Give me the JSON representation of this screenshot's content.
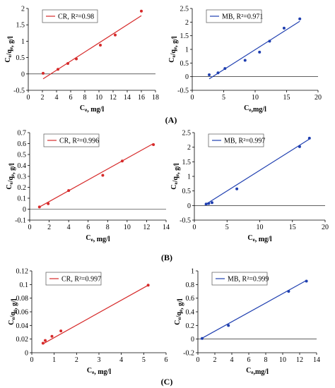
{
  "panel_labels": [
    "(A)",
    "(B)",
    "(C)"
  ],
  "chart_data": [
    {
      "type": "scatter",
      "panel": "A",
      "series": [
        {
          "name": "CR, R²=0.98",
          "color": "#d62a2a",
          "x": [
            2.1,
            4.2,
            5.6,
            6.8,
            10.2,
            12.3,
            16.0
          ],
          "y": [
            0.02,
            0.14,
            0.32,
            0.46,
            0.88,
            1.19,
            1.92
          ],
          "fit": [
            [
              2.1,
              -0.15
            ],
            [
              16.0,
              1.78
            ]
          ]
        }
      ],
      "xlabel": "Ce, mg/l",
      "ylabel": "Ce/qe, g/l",
      "xlim": [
        0,
        18
      ],
      "ylim": [
        -0.5,
        2
      ],
      "xticks": [
        0,
        2,
        4,
        6,
        8,
        10,
        12,
        14,
        16,
        18
      ],
      "yticks": [
        -0.5,
        0,
        0.5,
        1,
        1.5,
        2
      ],
      "ytick_labels": [
        "-0.5",
        "0",
        "0.5",
        "1",
        "1.5",
        "2"
      ],
      "legend_placement": "top-left",
      "grid": false
    },
    {
      "type": "scatter",
      "panel": "A",
      "series": [
        {
          "name": "MB, R²=0.971",
          "color": "#1f3fb0",
          "x": [
            2.7,
            4.1,
            5.2,
            8.4,
            10.7,
            12.3,
            14.6,
            17.1
          ],
          "y": [
            0.07,
            0.14,
            0.3,
            0.6,
            0.9,
            1.3,
            1.78,
            2.12
          ],
          "fit": [
            [
              2.7,
              -0.08
            ],
            [
              17.1,
              2.03
            ]
          ]
        }
      ],
      "xlabel": "Ce,mg/l",
      "ylabel": "Ce/qe, g/l",
      "xlim": [
        0,
        20
      ],
      "ylim": [
        -0.5,
        2.5
      ],
      "xticks": [
        0,
        5,
        10,
        15,
        20
      ],
      "yticks": [
        -0.5,
        0,
        0.5,
        1,
        1.5,
        2,
        2.5
      ],
      "ytick_labels": [
        "-0.5",
        "0",
        "0.5",
        "1",
        "1.5",
        "2",
        "2.5"
      ],
      "legend_placement": "top-left",
      "grid": false
    },
    {
      "type": "scatter",
      "panel": "B",
      "series": [
        {
          "name": "CR, R²=0.996",
          "color": "#d62a2a",
          "x": [
            1.0,
            1.9,
            4.0,
            7.5,
            9.5,
            12.7
          ],
          "y": [
            0.02,
            0.05,
            0.17,
            0.31,
            0.44,
            0.59
          ],
          "fit": [
            [
              0.9,
              0.015
            ],
            [
              12.7,
              0.6
            ]
          ]
        }
      ],
      "xlabel": "Ce, mg/l",
      "ylabel": "Ce/qe, g/l",
      "xlim": [
        0,
        14
      ],
      "ylim": [
        -0.1,
        0.7
      ],
      "xticks": [
        0,
        2,
        4,
        6,
        8,
        10,
        12,
        14
      ],
      "yticks": [
        -0.1,
        0,
        0.1,
        0.2,
        0.3,
        0.4,
        0.5,
        0.6,
        0.7
      ],
      "ytick_labels": [
        "-0.1",
        "0",
        "0.1",
        "0.2",
        "0.3",
        "0.4",
        "0.5",
        "0.6",
        "0.7"
      ],
      "legend_placement": "top-left",
      "grid": false
    },
    {
      "type": "scatter",
      "panel": "B",
      "series": [
        {
          "name": "MB, R²=0.997",
          "color": "#1f3fb0",
          "x": [
            1.8,
            2.2,
            2.7,
            6.5,
            16.1,
            17.6
          ],
          "y": [
            0.05,
            0.07,
            0.1,
            0.57,
            2.02,
            2.31
          ],
          "fit": [
            [
              1.6,
              0.02
            ],
            [
              17.6,
              2.28
            ]
          ]
        }
      ],
      "xlabel": "Ce, mg/l",
      "ylabel": "Ce/qe, g/l",
      "xlim": [
        0,
        20
      ],
      "ylim": [
        -0.5,
        2.5
      ],
      "xticks": [
        0,
        5,
        10,
        15,
        20
      ],
      "yticks": [
        -0.5,
        0,
        0.5,
        1,
        1.5,
        2,
        2.5
      ],
      "ytick_labels": [
        "-0.5",
        "0",
        "0.5",
        "1",
        "1.5",
        "2",
        "2.5"
      ],
      "legend_placement": "top-left",
      "grid": false
    },
    {
      "type": "scatter",
      "panel": "C",
      "series": [
        {
          "name": "CR, R²=0.997",
          "color": "#d62a2a",
          "x": [
            0.5,
            0.6,
            0.9,
            1.3,
            5.2
          ],
          "y": [
            0.014,
            0.018,
            0.024,
            0.032,
            0.099
          ],
          "fit": [
            [
              0.5,
              0.013
            ],
            [
              5.2,
              0.099
            ]
          ]
        }
      ],
      "xlabel": "Ce, mg/l",
      "ylabel": "Ce/qe, g/l",
      "xlim": [
        0,
        6
      ],
      "ylim": [
        0,
        0.12
      ],
      "xticks": [
        0,
        1,
        2,
        3,
        4,
        5,
        6
      ],
      "yticks": [
        0,
        0.02,
        0.04,
        0.06,
        0.08,
        0.1,
        0.12
      ],
      "ytick_labels": [
        "0",
        "0.02",
        "0.04",
        "0.06",
        "0.08",
        "0.1",
        "0.12"
      ],
      "legend_placement": "top-left",
      "grid": false
    },
    {
      "type": "scatter",
      "panel": "C",
      "series": [
        {
          "name": "MB, R²=0.999",
          "color": "#1f3fb0",
          "x": [
            0.5,
            3.6,
            10.7,
            12.8
          ],
          "y": [
            0.01,
            0.2,
            0.7,
            0.85
          ],
          "fit": [
            [
              0.3,
              0.0
            ],
            [
              12.8,
              0.86
            ]
          ]
        }
      ],
      "xlabel": "Ce,mg/l",
      "ylabel": "Ce/qe, g/l",
      "xlim": [
        0,
        14
      ],
      "ylim": [
        -0.2,
        1
      ],
      "xticks": [
        0,
        2,
        4,
        6,
        8,
        10,
        12,
        14
      ],
      "yticks": [
        -0.2,
        0,
        0.2,
        0.4,
        0.6,
        0.8,
        1
      ],
      "ytick_labels": [
        "-0.2",
        "0",
        "0.2",
        "0.4",
        "0.6",
        "0.8",
        "1"
      ],
      "legend_placement": "top-left",
      "grid": false
    }
  ]
}
